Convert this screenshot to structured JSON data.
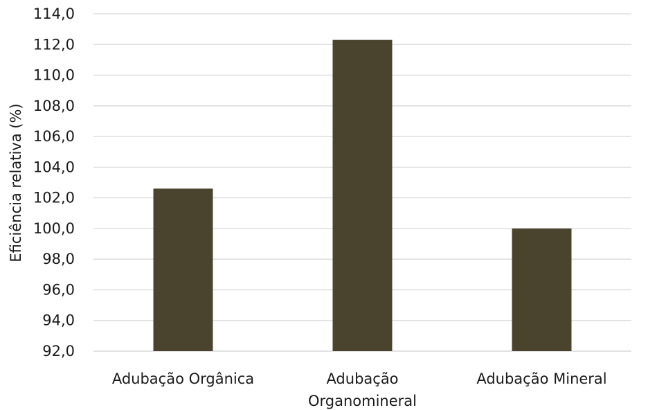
{
  "chart_data": {
    "type": "bar",
    "title": "",
    "xlabel": "",
    "ylabel": "Eficiência relativa  (%)",
    "categories": [
      [
        "Adubação Orgânica"
      ],
      [
        "Adubação",
        "Organomineral"
      ],
      [
        "Adubação Mineral"
      ]
    ],
    "values": [
      102.6,
      112.3,
      100.0
    ],
    "ylim": [
      92,
      114
    ],
    "yticks": [
      92,
      94,
      96,
      98,
      100,
      102,
      104,
      106,
      108,
      110,
      112,
      114
    ],
    "ytick_labels": [
      "92,0",
      "94,0",
      "96,0",
      "98,0",
      "100,0",
      "102,0",
      "104,0",
      "106,0",
      "108,0",
      "110,0",
      "112,0",
      "114,0"
    ],
    "grid": true,
    "legend": "none",
    "bar_color": "#4a432e",
    "gridline_color": "#d9d9d9"
  }
}
